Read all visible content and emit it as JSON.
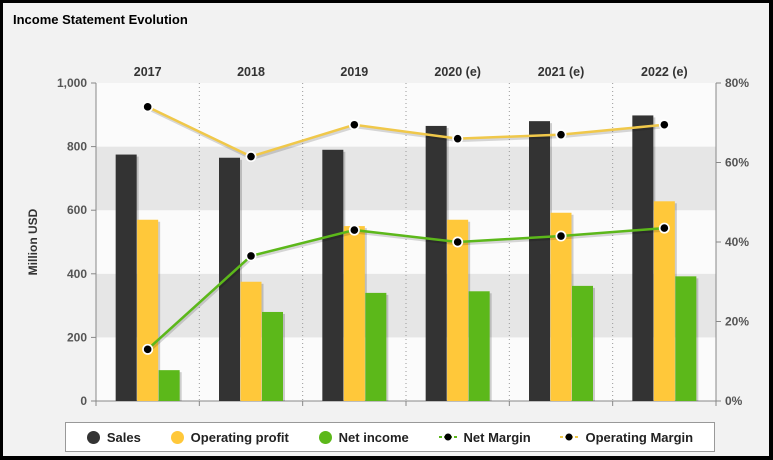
{
  "title": "Income Statement Evolution",
  "colors": {
    "sales": "#333333",
    "operating_profit": "#ffc83a",
    "net_income": "#5cb81a",
    "net_margin": "#5cb81a",
    "operating_margin": "#f0c84a",
    "band": "#e6e6e6",
    "band_alt": "#fbfbfb"
  },
  "legend": {
    "sales": "Sales",
    "operating_profit": "Operating profit",
    "net_income": "Net income",
    "net_margin": "Net Margin",
    "operating_margin": "Operating Margin"
  },
  "chart_data": {
    "type": "bar",
    "title": "Income Statement Evolution",
    "categories": [
      "2017",
      "2018",
      "2019",
      "2020 (e)",
      "2021 (e)",
      "2022 (e)"
    ],
    "ylabel": "Million USD",
    "ylim": [
      0,
      1000
    ],
    "yticks": [
      0,
      200,
      400,
      600,
      800,
      1000
    ],
    "ytick_labels": [
      "0",
      "200",
      "400",
      "600",
      "800",
      "1,000"
    ],
    "y2lim": [
      0,
      80
    ],
    "y2ticks": [
      0,
      20,
      40,
      60,
      80
    ],
    "y2tick_labels": [
      "0%",
      "20%",
      "40%",
      "60%",
      "80%"
    ],
    "series": [
      {
        "name": "Sales",
        "kind": "bar",
        "axis": "left",
        "values": [
          775,
          765,
          790,
          865,
          880,
          898
        ]
      },
      {
        "name": "Operating profit",
        "kind": "bar",
        "axis": "left",
        "values": [
          570,
          375,
          550,
          570,
          592,
          628
        ]
      },
      {
        "name": "Net income",
        "kind": "bar",
        "axis": "left",
        "values": [
          97,
          280,
          340,
          345,
          362,
          392
        ]
      },
      {
        "name": "Net Margin",
        "kind": "line",
        "axis": "right",
        "values": [
          13,
          36.5,
          43,
          40,
          41.5,
          43.5
        ]
      },
      {
        "name": "Operating Margin",
        "kind": "line",
        "axis": "right",
        "values": [
          74,
          61.5,
          69.5,
          66,
          67,
          69.5
        ]
      }
    ],
    "legend_position": "bottom"
  }
}
